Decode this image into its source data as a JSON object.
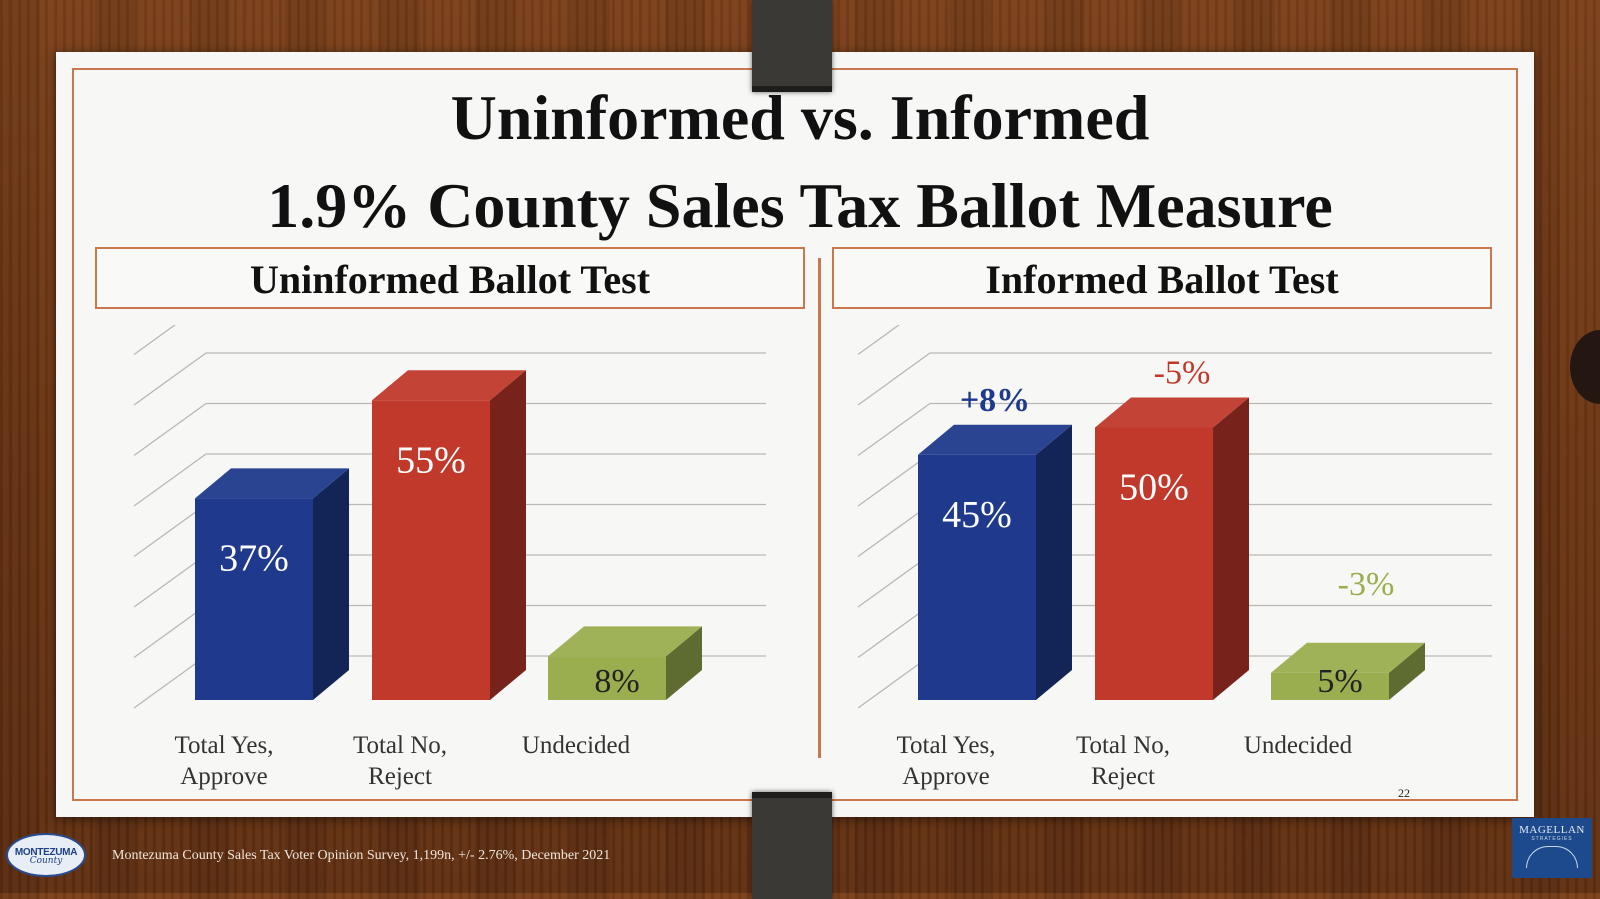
{
  "title": {
    "line1": "Uninformed vs. Informed",
    "line2": "1.9% County Sales Tax Ballot Measure"
  },
  "chart_data": [
    {
      "type": "bar",
      "title": "Uninformed Ballot Test",
      "categories": [
        "Total Yes,\nApprove",
        "Total No,\nReject",
        "Undecided"
      ],
      "values": [
        37,
        55,
        8
      ],
      "value_labels": [
        "37%",
        "55%",
        "8%"
      ],
      "colors": [
        "#1f3a8c",
        "#c0392b",
        "#9aae4f"
      ],
      "ylim": [
        0,
        70
      ],
      "grid": true
    },
    {
      "type": "bar",
      "title": "Informed Ballot Test",
      "categories": [
        "Total Yes,\nApprove",
        "Total No,\nReject",
        "Undecided"
      ],
      "values": [
        45,
        50,
        5
      ],
      "value_labels": [
        "45%",
        "50%",
        "5%"
      ],
      "change_labels": [
        "+8%",
        "-5%",
        "-3%"
      ],
      "change_colors": [
        "#1f3a8c",
        "#c0392b",
        "#9aae4f"
      ],
      "colors": [
        "#1f3a8c",
        "#c0392b",
        "#9aae4f"
      ],
      "ylim": [
        0,
        70
      ],
      "grid": true
    }
  ],
  "footer": {
    "source": "Montezuma County Sales Tax Voter Opinion Survey, 1,199n, +/- 2.76%, December 2021",
    "page_number": "22",
    "logo_text": "MONTEZUMA",
    "logo_sub": "County",
    "brand": "MAGELLAN",
    "brand_sub": "STRATEGIES"
  }
}
